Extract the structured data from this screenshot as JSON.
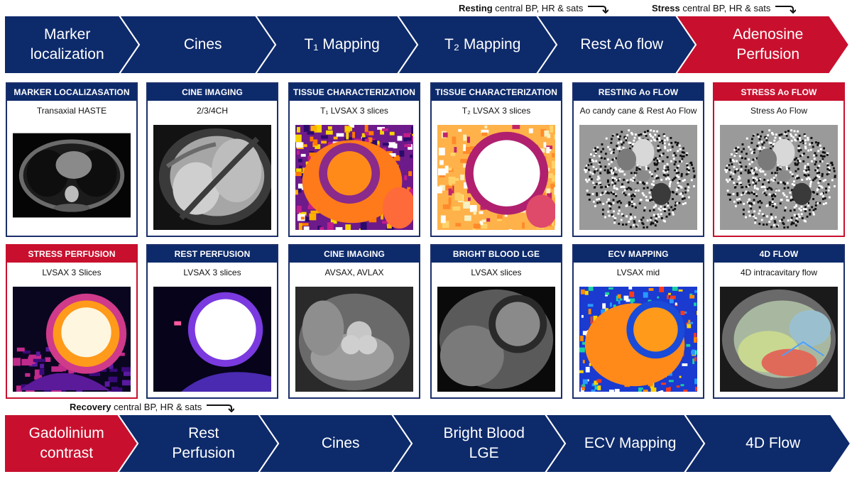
{
  "notes": {
    "resting": {
      "bold": "Resting",
      "rest": " central BP, HR & sats"
    },
    "stress": {
      "bold": "Stress",
      "rest": " central BP, HR & sats"
    },
    "recovery": {
      "bold": "Recovery",
      "rest": " central BP, HR & sats"
    }
  },
  "top_steps": [
    {
      "label": "Marker\nlocalization",
      "color": "#0d2a6b"
    },
    {
      "label": "Cines",
      "color": "#0d2a6b"
    },
    {
      "label": "T₁ Mapping",
      "color": "#0d2a6b"
    },
    {
      "label": "T₂ Mapping",
      "color": "#0d2a6b"
    },
    {
      "label": "Rest Ao flow",
      "color": "#0d2a6b"
    },
    {
      "label": "Adenosine\nPerfusion",
      "color": "#c8102e"
    }
  ],
  "bottom_steps": [
    {
      "label": "Gadolinium\ncontrast",
      "color": "#c8102e"
    },
    {
      "label": "Rest\nPerfusion",
      "color": "#0d2a6b"
    },
    {
      "label": "Cines",
      "color": "#0d2a6b"
    },
    {
      "label": "Bright Blood\nLGE",
      "color": "#0d2a6b"
    },
    {
      "label": "ECV Mapping",
      "color": "#0d2a6b"
    },
    {
      "label": "4D Flow",
      "color": "#0d2a6b"
    }
  ],
  "panels_row1": [
    {
      "title": "MARKER LOCALIZASATION",
      "subtitle": "Transaxial HASTE",
      "accent": "blue",
      "image": "haste-axial"
    },
    {
      "title": "CINE IMAGING",
      "subtitle": "2/3/4CH",
      "accent": "blue",
      "image": "cine-4ch"
    },
    {
      "title": "TISSUE CHARACTERIZATION",
      "subtitle": "T₁ LVSAX 3 slices",
      "accent": "blue",
      "image": "t1-map"
    },
    {
      "title": "TISSUE CHARACTERIZATION",
      "subtitle": "T₂ LVSAX 3 slices",
      "accent": "blue",
      "image": "t2-map"
    },
    {
      "title": "RESTING Ao FLOW",
      "subtitle": "Ao candy cane & Rest Ao Flow",
      "accent": "blue",
      "image": "phase-contrast"
    },
    {
      "title": "STRESS Ao FLOW",
      "subtitle": "Stress Ao Flow",
      "accent": "red",
      "image": "phase-contrast"
    }
  ],
  "panels_row2": [
    {
      "title": "STRESS PERFUSION",
      "subtitle": "LVSAX 3 Slices",
      "accent": "red",
      "image": "perfusion-stress"
    },
    {
      "title": "REST PERFUSION",
      "subtitle": "LVSAX 3 slices",
      "accent": "blue",
      "image": "perfusion-rest"
    },
    {
      "title": "CINE IMAGING",
      "subtitle": "AVSAX, AVLAX",
      "accent": "blue",
      "image": "cine-av"
    },
    {
      "title": "BRIGHT BLOOD LGE",
      "subtitle": "LVSAX slices",
      "accent": "blue",
      "image": "lge"
    },
    {
      "title": "ECV MAPPING",
      "subtitle": "LVSAX mid",
      "accent": "blue",
      "image": "ecv-map"
    },
    {
      "title": "4D FLOW",
      "subtitle": "4D intracavitary flow",
      "accent": "blue",
      "image": "flow-4d"
    }
  ]
}
